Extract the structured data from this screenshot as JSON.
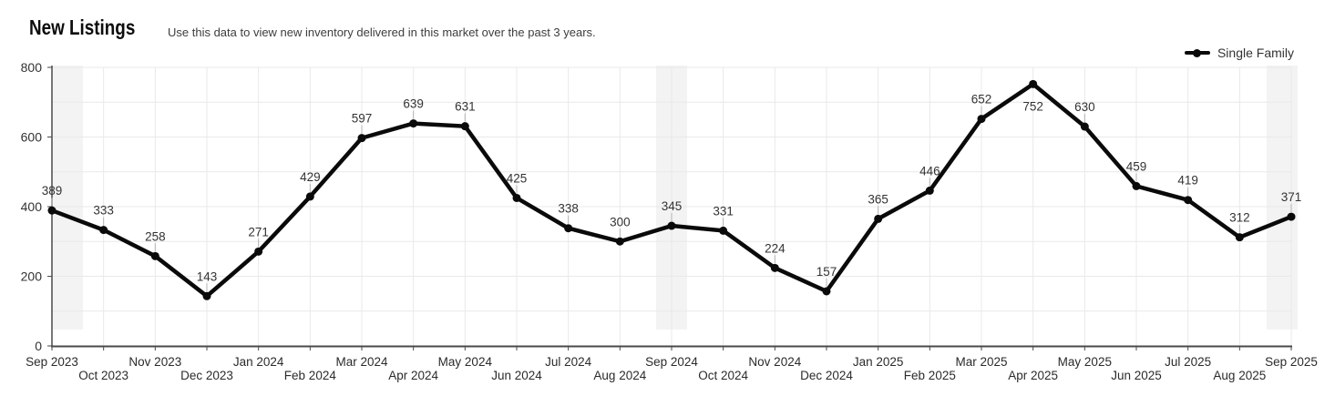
{
  "header": {
    "title": "New Listings",
    "subtitle": "Use this data to view new inventory delivered in this market over the past 3 years."
  },
  "legend": {
    "items": [
      {
        "label": "Single Family",
        "color": "#0a0a0a"
      }
    ]
  },
  "chart_data": {
    "type": "line",
    "title": "New Listings",
    "xlabel": "",
    "ylabel": "",
    "x": [
      "Sep 2023",
      "Oct 2023",
      "Nov 2023",
      "Dec 2023",
      "Jan 2024",
      "Feb 2024",
      "Mar 2024",
      "Apr 2024",
      "May 2024",
      "Jun 2024",
      "Jul 2024",
      "Aug 2024",
      "Sep 2024",
      "Oct 2024",
      "Nov 2024",
      "Dec 2024",
      "Jan 2025",
      "Feb 2025",
      "Mar 2025",
      "Apr 2025",
      "May 2025",
      "Jun 2025",
      "Jul 2025",
      "Aug 2025",
      "Sep 2025"
    ],
    "series": [
      {
        "name": "Single Family",
        "color": "#0a0a0a",
        "values": [
          389,
          333,
          258,
          143,
          271,
          429,
          597,
          639,
          631,
          425,
          338,
          300,
          345,
          331,
          224,
          157,
          365,
          446,
          652,
          752,
          630,
          459,
          419,
          312,
          371
        ]
      }
    ],
    "ylim": [
      0,
      800
    ],
    "yticks": [
      0,
      200,
      400,
      600,
      800
    ],
    "grid": true,
    "gridline_step": 100,
    "legend_position": "top-right",
    "point_labels_visible": true,
    "label_below_points": [
      "Apr 2025"
    ],
    "highlighted_months": [
      "Sep 2023",
      "Sep 2024",
      "Sep 2025"
    ],
    "colors": {
      "line": "#0a0a0a",
      "grid": "#e9e9e9",
      "axis": "#4a4a4a",
      "band": "#f3f3f3",
      "value_label": "#333333",
      "tick_label": "#2b2b2b",
      "leader": "#b3b3b3"
    }
  }
}
